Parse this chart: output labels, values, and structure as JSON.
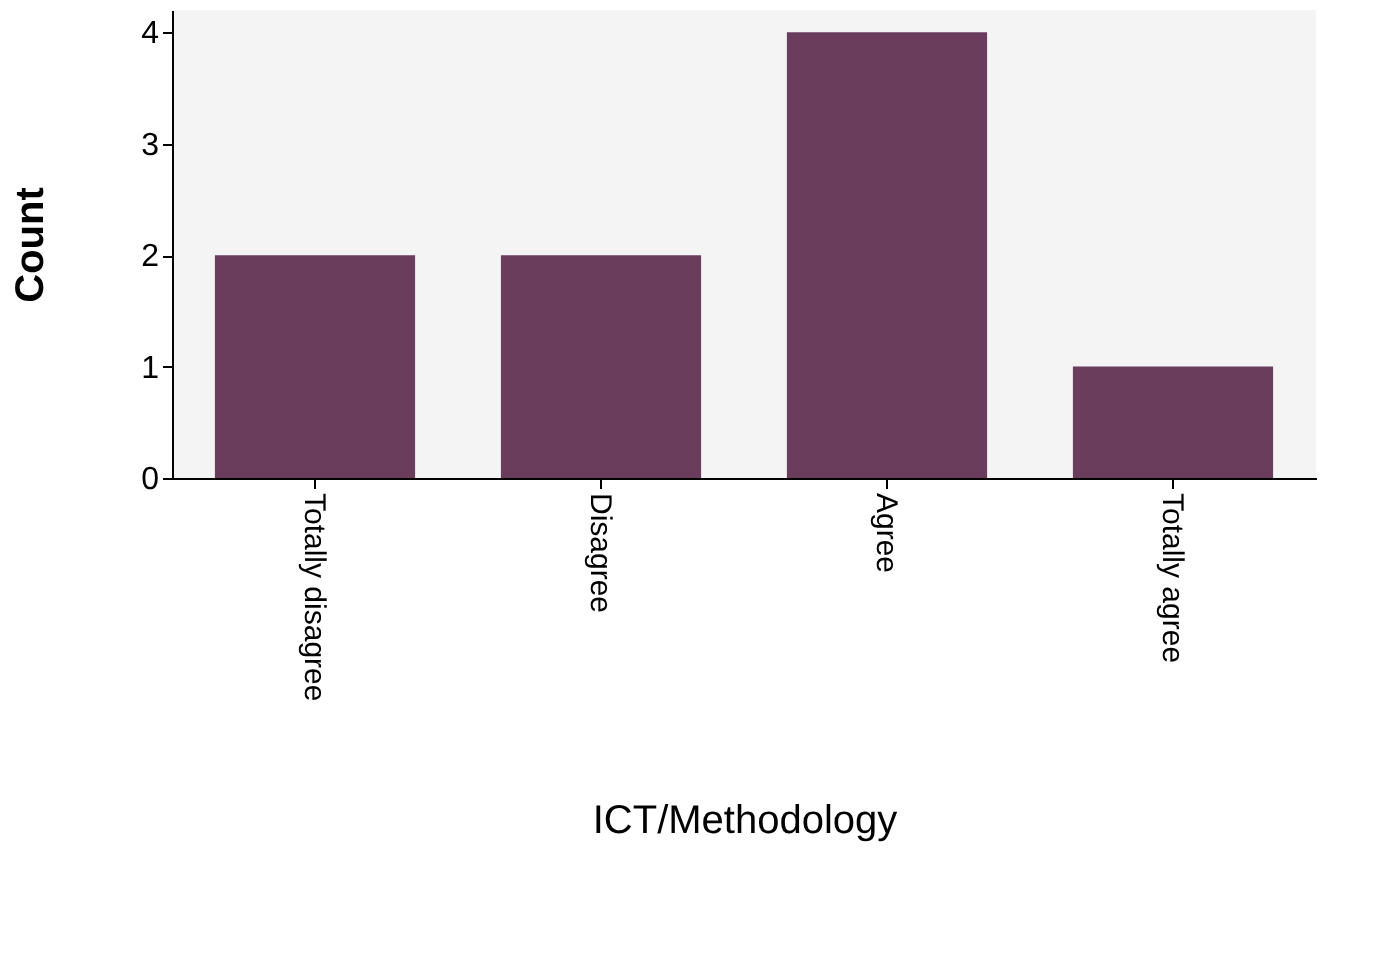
{
  "chart_data": {
    "type": "bar",
    "xlabel": "ICT/Methodology",
    "ylabel": "Count",
    "categories": [
      "Totally disagree",
      "Disagree",
      "Agree",
      "Totally agree"
    ],
    "values": [
      2,
      2,
      4,
      1
    ],
    "color": "#6b3d5c",
    "ylim": [
      0,
      4.2
    ],
    "yticks": [
      0,
      1,
      2,
      3,
      4
    ],
    "grid": false
  }
}
